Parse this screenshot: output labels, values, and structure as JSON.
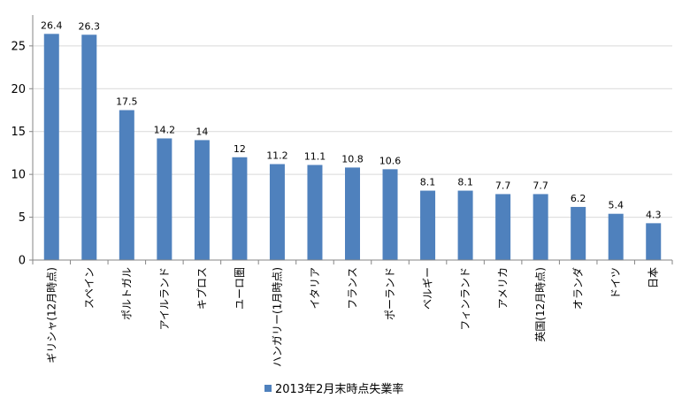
{
  "chart_data": {
    "type": "bar",
    "categories": [
      "ギリシャ(12月時点)",
      "スペイン",
      "ポルトガル",
      "アイルランド",
      "キプロス",
      "ユーロ圏",
      "ハンガリー(1月時点)",
      "イタリア",
      "フランス",
      "ポーランド",
      "ベルギー",
      "フィンランド",
      "アメリカ",
      "英国(12月時点)",
      "オランダ",
      "ドイツ",
      "日本"
    ],
    "series": [
      {
        "name": "2013年2月末時点失業率",
        "values": [
          26.4,
          26.3,
          17.5,
          14.2,
          14,
          12,
          11.2,
          11.1,
          10.8,
          10.6,
          8.1,
          8.1,
          7.7,
          7.7,
          6.2,
          5.4,
          4.3
        ],
        "color": "#4f81bd"
      }
    ],
    "yticks": [
      0,
      5,
      10,
      15,
      20,
      25
    ],
    "ylim": [
      0,
      28.6
    ],
    "grid": true,
    "legend_position": "bottom",
    "title": "",
    "xlabel": "",
    "ylabel": ""
  }
}
